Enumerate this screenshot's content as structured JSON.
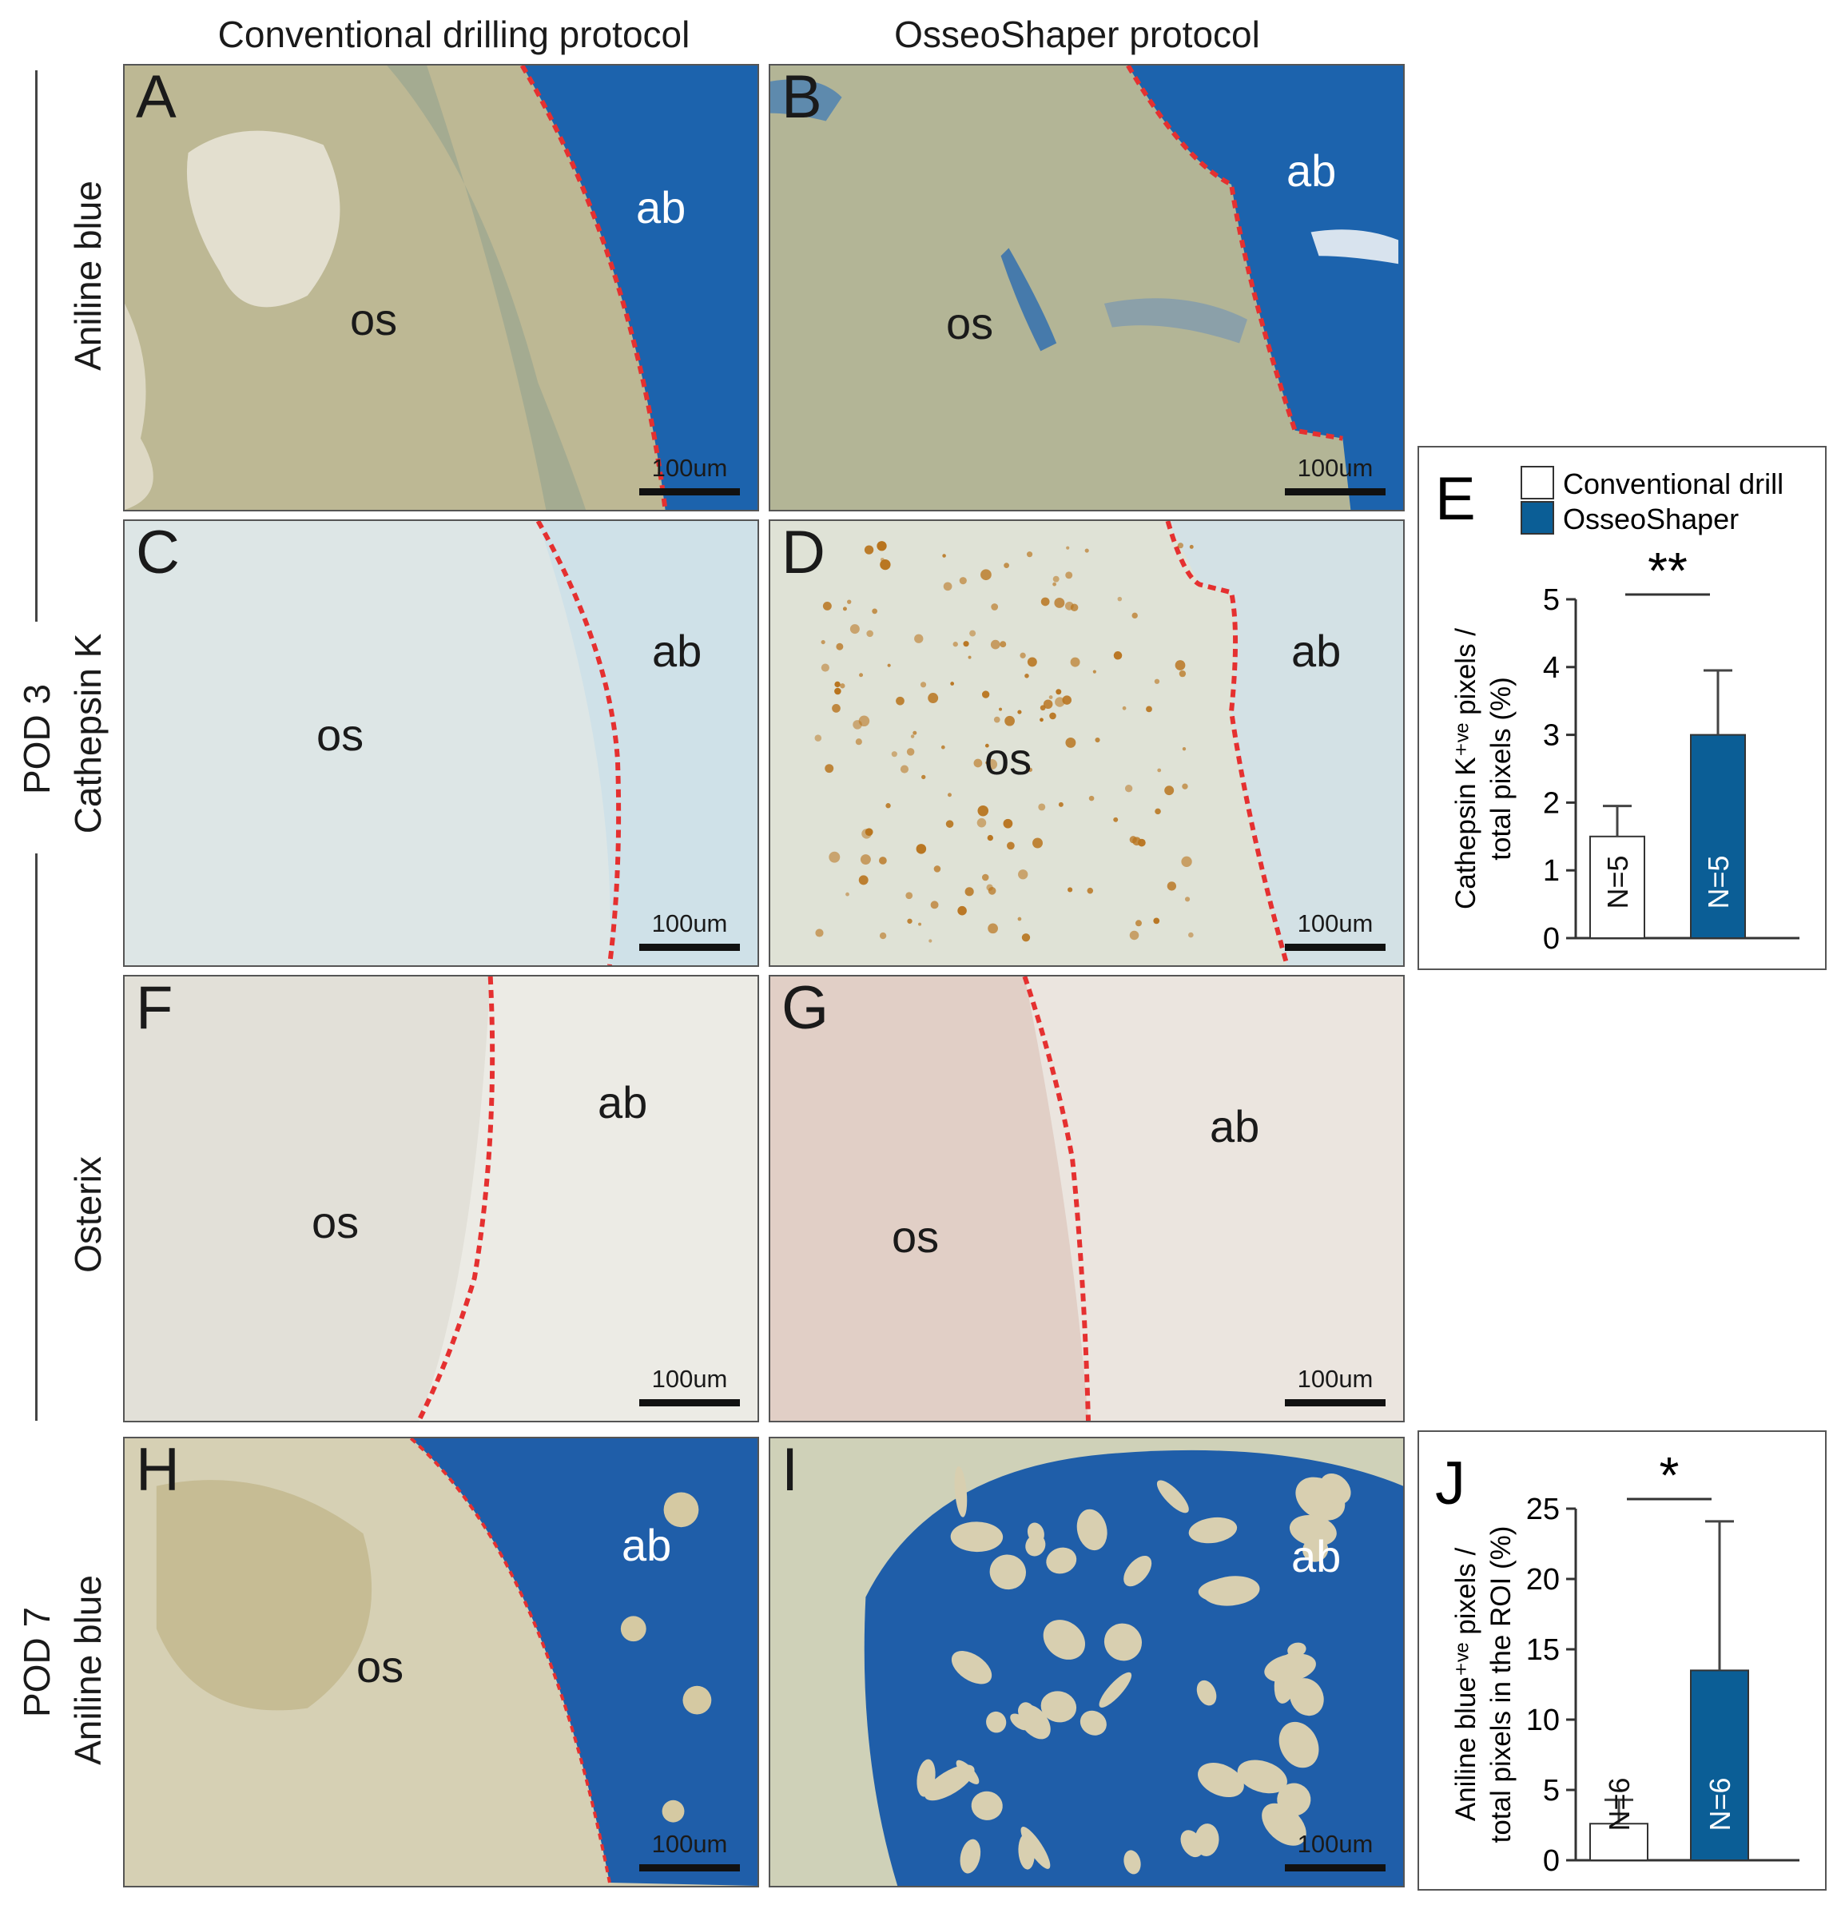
{
  "column_titles": [
    "Conventional drilling protocol",
    "OsseoShaper protocol"
  ],
  "row_groups": [
    {
      "label": "POD 3",
      "stains": [
        "Aniline blue",
        "Cathepsin K",
        "Osterix"
      ]
    },
    {
      "label": "POD 7",
      "stains": [
        "Aniline blue"
      ]
    }
  ],
  "panels": [
    {
      "id": "A",
      "stain": "Aniline blue",
      "labels": {
        "os": "os",
        "ab": "ab"
      },
      "scale_bar": "100um"
    },
    {
      "id": "B",
      "stain": "Aniline blue",
      "labels": {
        "os": "os",
        "ab": "ab"
      },
      "scale_bar": "100um"
    },
    {
      "id": "C",
      "stain": "Cathepsin K",
      "labels": {
        "os": "os",
        "ab": "ab"
      },
      "scale_bar": "100um"
    },
    {
      "id": "D",
      "stain": "Cathepsin K",
      "labels": {
        "os": "os",
        "ab": "ab"
      },
      "scale_bar": "100um"
    },
    {
      "id": "F",
      "stain": "Osterix",
      "labels": {
        "os": "os",
        "ab": "ab"
      },
      "scale_bar": "100um"
    },
    {
      "id": "G",
      "stain": "Osterix",
      "labels": {
        "os": "os",
        "ab": "ab"
      },
      "scale_bar": "100um"
    },
    {
      "id": "H",
      "stain": "Aniline blue",
      "labels": {
        "os": "os",
        "ab": "ab"
      },
      "scale_bar": "100um"
    },
    {
      "id": "I",
      "stain": "Aniline blue",
      "labels": {
        "ab": "ab"
      },
      "scale_bar": "100um"
    }
  ],
  "colors": {
    "conventional": "#ffffff",
    "osseoshaper": "#0b5e96",
    "boundary": "#e53030",
    "aniline_blue": "#1c63ad",
    "osteoid": "#c7bf9c"
  },
  "chart_data": [
    {
      "panel": "E",
      "type": "bar",
      "legend": [
        "Conventional drill",
        "OsseoShaper"
      ],
      "categories": [
        "Conventional drill",
        "OsseoShaper"
      ],
      "values": [
        1.5,
        3.0
      ],
      "error": [
        0.45,
        0.95
      ],
      "n_labels": [
        "N=5",
        "N=5"
      ],
      "ylabel_lines": [
        "Cathepsin K⁺ᵛᵉ pixels /",
        "total pixels  (%)"
      ],
      "ylim": [
        0,
        5
      ],
      "yticks": [
        0,
        1,
        2,
        3,
        4,
        5
      ],
      "significance": "**"
    },
    {
      "panel": "J",
      "type": "bar",
      "categories": [
        "Conventional drill",
        "OsseoShaper"
      ],
      "values": [
        2.6,
        13.5
      ],
      "error": [
        1.7,
        10.6
      ],
      "n_labels": [
        "N=6",
        "N=6"
      ],
      "ylabel_lines": [
        "Aniline blue⁺ᵛᵉ pixels /",
        "total pixels in the ROI (%)"
      ],
      "ylim": [
        0,
        25
      ],
      "yticks": [
        0,
        5,
        10,
        15,
        20,
        25
      ],
      "significance": "*"
    }
  ]
}
